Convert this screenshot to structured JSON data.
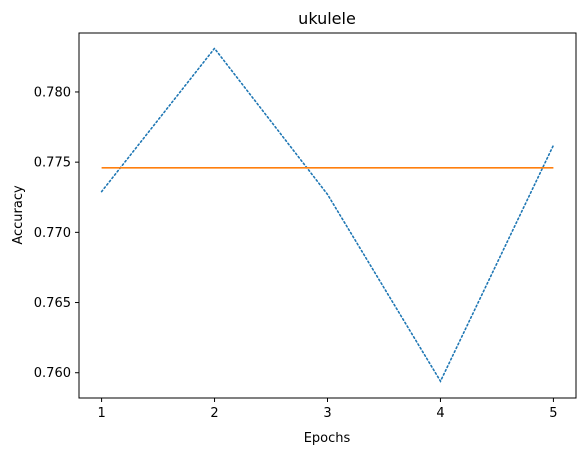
{
  "chart_data": {
    "type": "line",
    "title": "ukulele",
    "xlabel": "Epochs",
    "ylabel": "Accuracy",
    "x": [
      1,
      2,
      3,
      4,
      5
    ],
    "xlim": [
      0.8,
      5.2
    ],
    "ylim": [
      0.7582,
      0.7842
    ],
    "xticks": [
      1,
      2,
      3,
      4,
      5
    ],
    "xtick_labels": [
      "1",
      "2",
      "3",
      "4",
      "5"
    ],
    "yticks": [
      0.76,
      0.765,
      0.77,
      0.775,
      0.78
    ],
    "ytick_labels": [
      "0.760",
      "0.765",
      "0.770",
      "0.775",
      "0.780"
    ],
    "grid": false,
    "series": [
      {
        "values": [
          0.7729,
          0.7831,
          0.7727,
          0.7594,
          0.7762
        ],
        "color": "#1f77b4",
        "style": "dotted"
      },
      {
        "values": [
          0.7746,
          0.7746,
          0.7746,
          0.7746,
          0.7746
        ],
        "color": "#ff7f0e",
        "style": "solid"
      }
    ]
  }
}
